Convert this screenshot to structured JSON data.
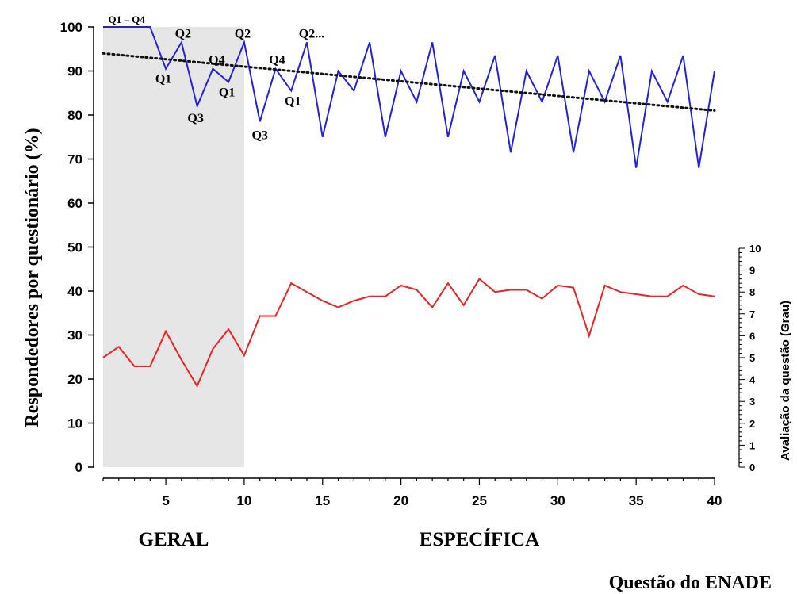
{
  "chart_data": {
    "type": "line",
    "xlabel": "Questão do ENADE",
    "ylabel": "Respondedores por questionário (%)",
    "y2label": "Avaliação da questão (Grau)",
    "xlim": [
      1,
      40
    ],
    "ylim": [
      0,
      100
    ],
    "y2lim": [
      0,
      10
    ],
    "x_ticks": [
      5,
      10,
      15,
      20,
      25,
      30,
      35,
      40
    ],
    "y_ticks": [
      0,
      10,
      20,
      30,
      40,
      50,
      60,
      70,
      80,
      90,
      100
    ],
    "y2_ticks": [
      0,
      1,
      2,
      3,
      4,
      5,
      6,
      7,
      8,
      9,
      10
    ],
    "shaded_region": {
      "x_range": [
        1,
        10
      ],
      "color": "#e6e6e6"
    },
    "sections": [
      {
        "label": "GERAL",
        "x_center": 5.5
      },
      {
        "label": "ESPECÍFICA",
        "x_center": 25
      }
    ],
    "x": [
      1,
      2,
      3,
      4,
      5,
      6,
      7,
      8,
      9,
      10,
      11,
      12,
      13,
      14,
      15,
      16,
      17,
      18,
      19,
      20,
      21,
      22,
      23,
      24,
      25,
      26,
      27,
      28,
      29,
      30,
      31,
      32,
      33,
      34,
      35,
      36,
      37,
      38,
      39,
      40
    ],
    "series": [
      {
        "axis": "left",
        "color": "#2222dd",
        "values": [
          100,
          100,
          100,
          100,
          90.5,
          96.5,
          82,
          90.5,
          87.5,
          96.5,
          78.5,
          90.5,
          85.5,
          96.5,
          75,
          90,
          85.5,
          96.5,
          75,
          90,
          83,
          96.5,
          75,
          90,
          83,
          93.5,
          71.5,
          90,
          83,
          93.5,
          71.5,
          90,
          83,
          93.5,
          68,
          90,
          83,
          93.5,
          68,
          90
        ]
      },
      {
        "axis": "right",
        "color": "#ee2222",
        "values": [
          5.0,
          5.5,
          4.6,
          4.6,
          6.2,
          4.9,
          3.7,
          5.4,
          6.3,
          5.1,
          6.9,
          6.9,
          8.4,
          8.0,
          7.6,
          7.3,
          7.6,
          7.8,
          7.8,
          8.3,
          8.1,
          7.3,
          8.4,
          7.4,
          8.6,
          8.0,
          8.1,
          8.1,
          7.7,
          8.3,
          8.2,
          6.0,
          8.3,
          8.0,
          7.9,
          7.8,
          7.8,
          8.3,
          7.9,
          7.8
        ]
      }
    ],
    "trendline": {
      "style": "dotted",
      "color": "#111111",
      "x": [
        1,
        40
      ],
      "y": [
        94,
        81
      ]
    },
    "annotations": [
      {
        "text": "Q1 – Q4",
        "x": 2.5,
        "y": 100,
        "small": true
      },
      {
        "text": "Q1",
        "x": 5,
        "y": 90.5
      },
      {
        "text": "Q2",
        "x": 6,
        "y": 96.5
      },
      {
        "text": "Q3",
        "x": 7,
        "y": 82
      },
      {
        "text": "Q4",
        "x": 8,
        "y": 90.5
      },
      {
        "text": "Q1",
        "x": 9,
        "y": 87.5
      },
      {
        "text": "Q2",
        "x": 10,
        "y": 96.5
      },
      {
        "text": "Q3",
        "x": 11,
        "y": 78.5
      },
      {
        "text": "Q4",
        "x": 12,
        "y": 90.5
      },
      {
        "text": "Q1",
        "x": 13,
        "y": 85.5
      },
      {
        "text": "Q2...",
        "x": 14,
        "y": 96.5
      }
    ]
  }
}
